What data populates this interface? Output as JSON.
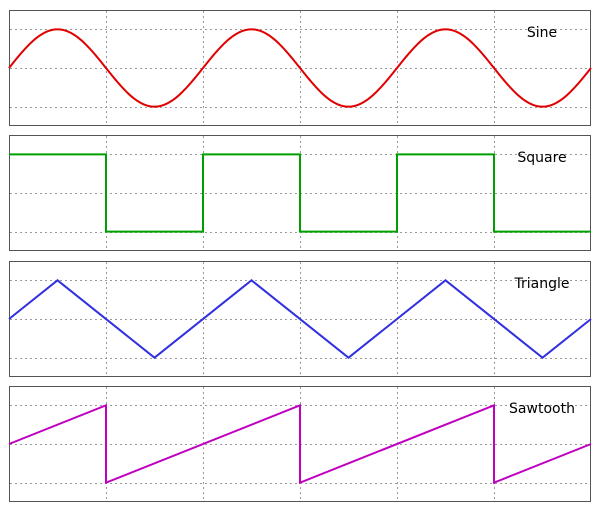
{
  "chart_data": [
    {
      "type": "line",
      "title": "Sine",
      "waveform": "sine",
      "color": "#e00000",
      "periods": 3,
      "xlim": [
        0,
        3
      ],
      "ylim": [
        -1.5,
        1.5
      ],
      "grid": true,
      "grid_x": [
        0.5,
        1.0,
        1.5,
        2.0,
        2.5
      ],
      "grid_y": [
        -1,
        0,
        1
      ],
      "series": [
        {
          "x": [
            0,
            0.25,
            0.5,
            0.75,
            1.0,
            1.25,
            1.5,
            1.75,
            2.0,
            2.25,
            2.5,
            2.75,
            3.0
          ],
          "y": [
            0,
            1,
            0,
            -1,
            0,
            1,
            0,
            -1,
            0,
            1,
            0,
            -1,
            0
          ]
        }
      ]
    },
    {
      "type": "line",
      "title": "Square",
      "waveform": "square",
      "color": "#00a000",
      "periods": 3,
      "xlim": [
        0,
        3
      ],
      "ylim": [
        -1.5,
        1.5
      ],
      "grid": true,
      "grid_x": [
        0.5,
        1.0,
        1.5,
        2.0,
        2.5
      ],
      "grid_y": [
        -1,
        0,
        1
      ],
      "series": [
        {
          "x": [
            0,
            0.5,
            0.5,
            1.0,
            1.0,
            1.5,
            1.5,
            2.0,
            2.0,
            2.5,
            2.5,
            3.0
          ],
          "y": [
            1,
            1,
            -1,
            -1,
            1,
            1,
            -1,
            -1,
            1,
            1,
            -1,
            -1
          ]
        }
      ]
    },
    {
      "type": "line",
      "title": "Triangle",
      "waveform": "triangle",
      "color": "#3030e0",
      "periods": 3,
      "xlim": [
        0,
        3
      ],
      "ylim": [
        -1.5,
        1.5
      ],
      "grid": true,
      "grid_x": [
        0.5,
        1.0,
        1.5,
        2.0,
        2.5
      ],
      "grid_y": [
        -1,
        0,
        1
      ],
      "series": [
        {
          "x": [
            0,
            0.25,
            0.75,
            1.25,
            1.75,
            2.25,
            2.75,
            3.0
          ],
          "y": [
            0,
            1,
            -1,
            1,
            -1,
            1,
            -1,
            0
          ]
        }
      ]
    },
    {
      "type": "line",
      "title": "Sawtooth",
      "waveform": "sawtooth",
      "color": "#c000c0",
      "periods": 3,
      "xlim": [
        0,
        3
      ],
      "ylim": [
        -1.5,
        1.5
      ],
      "grid": true,
      "grid_x": [
        0.5,
        1.0,
        1.5,
        2.0,
        2.5
      ],
      "grid_y": [
        -1,
        0,
        1
      ],
      "series": [
        {
          "x": [
            0,
            0.5,
            0.5,
            1.5,
            1.5,
            2.5,
            2.5,
            3.0
          ],
          "y": [
            0,
            1,
            -1,
            1,
            -1,
            1,
            -1,
            0
          ]
        }
      ]
    }
  ]
}
